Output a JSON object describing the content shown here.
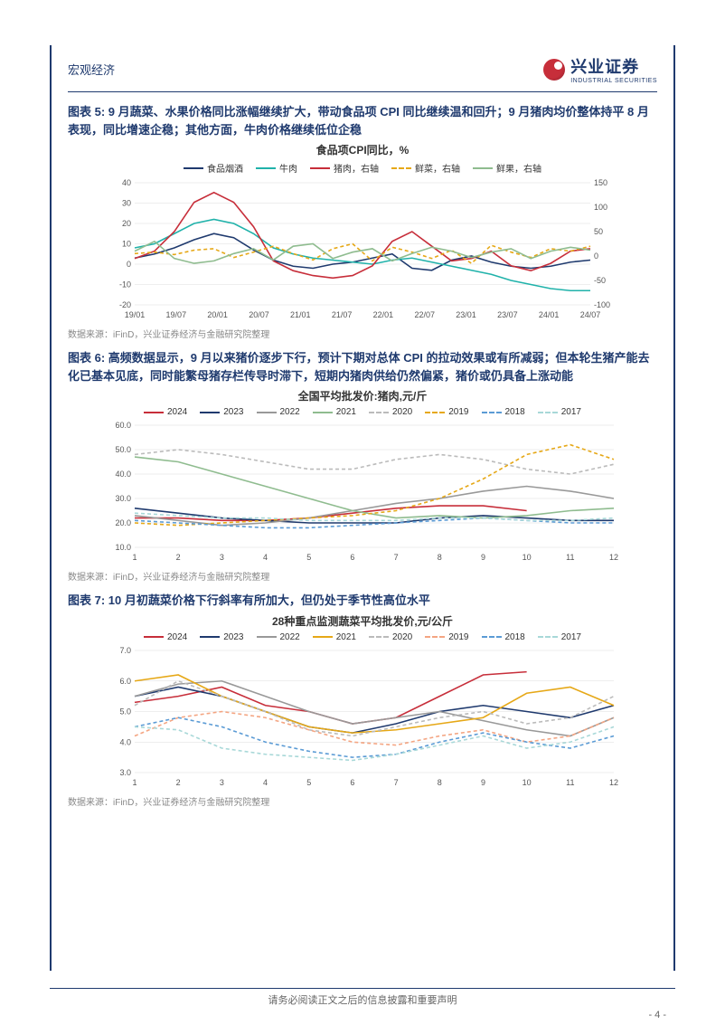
{
  "header": {
    "category": "宏观经济"
  },
  "logo": {
    "cn": "兴业证券",
    "en": "INDUSTRIAL SECURITIES"
  },
  "figures": {
    "fig5": {
      "title": "图表 5: 9 月蔬菜、水果价格同比涨幅继续扩大，带动食品项 CPI 同比继续温和回升；9 月猪肉均价整体持平 8 月表现，同比增速企稳；其他方面，牛肉价格继续低位企稳",
      "chart_title": "食品项CPI同比，%",
      "type": "line",
      "x_labels": [
        "19/01",
        "19/07",
        "20/01",
        "20/07",
        "21/01",
        "21/07",
        "22/01",
        "22/07",
        "23/01",
        "23/07",
        "24/01",
        "24/07"
      ],
      "y_left": {
        "min": -20,
        "max": 40,
        "ticks": [
          -20,
          -10,
          0,
          10,
          20,
          30,
          40
        ]
      },
      "y_right": {
        "min": -100,
        "max": 150,
        "ticks": [
          -100,
          -50,
          0,
          50,
          100,
          150
        ]
      },
      "series": [
        {
          "name": "食品烟酒",
          "color": "#1f3a6e",
          "dash": false,
          "axis": "left",
          "values": [
            3,
            5,
            8,
            12,
            15,
            13,
            7,
            2,
            -1,
            -2,
            0,
            1,
            3,
            5,
            -2,
            -3,
            2,
            4,
            1,
            -1,
            -2,
            -1,
            1,
            2
          ]
        },
        {
          "name": "牛肉",
          "color": "#20b2aa",
          "dash": false,
          "axis": "left",
          "values": [
            8,
            10,
            15,
            20,
            22,
            20,
            15,
            8,
            5,
            3,
            2,
            1,
            0,
            2,
            3,
            1,
            -1,
            -3,
            -5,
            -8,
            -10,
            -12,
            -13,
            -13
          ]
        },
        {
          "name": "猪肉，右轴",
          "color": "#c72e3a",
          "dash": false,
          "axis": "right",
          "values": [
            -5,
            10,
            50,
            110,
            130,
            110,
            60,
            -10,
            -30,
            -40,
            -45,
            -40,
            -20,
            30,
            50,
            20,
            -10,
            -5,
            10,
            -20,
            -30,
            -15,
            10,
            15
          ]
        },
        {
          "name": "鲜菜，右轴",
          "color": "#e6a817",
          "dash": true,
          "axis": "right",
          "values": [
            5,
            8,
            3,
            12,
            15,
            -3,
            8,
            20,
            5,
            -8,
            15,
            25,
            -10,
            18,
            8,
            -5,
            12,
            -15,
            22,
            8,
            -3,
            15,
            10,
            20
          ]
        },
        {
          "name": "鲜果，右轴",
          "color": "#8fbc8f",
          "dash": false,
          "axis": "right",
          "values": [
            10,
            30,
            -5,
            -15,
            -10,
            5,
            15,
            -8,
            20,
            25,
            -5,
            8,
            15,
            -10,
            5,
            18,
            10,
            -3,
            8,
            15,
            -5,
            10,
            18,
            12
          ]
        }
      ],
      "source": "数据来源：iFinD，兴业证券经济与金融研究院整理"
    },
    "fig6": {
      "title": "图表 6: 高频数据显示，9 月以来猪价逐步下行，预计下期对总体 CPI 的拉动效果或有所减弱；但本轮生猪产能去化已基本见底，同时能繁母猪存栏传导时滞下，短期内猪肉供给仍然偏紧，猪价或仍具备上涨动能",
      "chart_title": "全国平均批发价:猪肉,元/斤",
      "type": "line",
      "x_labels": [
        "1",
        "2",
        "3",
        "4",
        "5",
        "6",
        "7",
        "8",
        "9",
        "10",
        "11",
        "12"
      ],
      "y": {
        "min": 10.0,
        "max": 60.0,
        "ticks": [
          10.0,
          20.0,
          30.0,
          40.0,
          50.0,
          60.0
        ]
      },
      "series": [
        {
          "name": "2024",
          "color": "#c72e3a",
          "dash": false,
          "values": [
            22,
            22,
            21,
            21,
            22,
            24,
            26,
            27,
            27,
            25,
            null,
            null
          ]
        },
        {
          "name": "2023",
          "color": "#1f3a6e",
          "dash": false,
          "values": [
            26,
            24,
            22,
            21,
            20,
            20,
            20,
            22,
            23,
            22,
            21,
            21
          ]
        },
        {
          "name": "2022",
          "color": "#999999",
          "dash": false,
          "values": [
            23,
            21,
            19,
            20,
            22,
            25,
            28,
            30,
            33,
            35,
            33,
            30
          ]
        },
        {
          "name": "2021",
          "color": "#8fbc8f",
          "dash": false,
          "values": [
            47,
            45,
            40,
            35,
            30,
            25,
            22,
            23,
            22,
            23,
            25,
            26
          ]
        },
        {
          "name": "2020",
          "color": "#bbbbbb",
          "dash": true,
          "values": [
            48,
            50,
            48,
            45,
            42,
            42,
            46,
            48,
            46,
            42,
            40,
            44
          ]
        },
        {
          "name": "2019",
          "color": "#e6a817",
          "dash": true,
          "values": [
            20,
            19,
            20,
            21,
            22,
            23,
            25,
            30,
            38,
            48,
            52,
            46
          ]
        },
        {
          "name": "2018",
          "color": "#5b9bd5",
          "dash": true,
          "values": [
            21,
            20,
            19,
            18,
            18,
            19,
            20,
            21,
            22,
            21,
            20,
            20
          ]
        },
        {
          "name": "2017",
          "color": "#a8d8d8",
          "dash": true,
          "values": [
            24,
            23,
            22,
            22,
            21,
            21,
            21,
            22,
            22,
            21,
            21,
            22
          ]
        }
      ],
      "source": "数据来源：iFinD，兴业证券经济与金融研究院整理"
    },
    "fig7": {
      "title": "图表 7: 10 月初蔬菜价格下行斜率有所加大，但仍处于季节性高位水平",
      "chart_title": "28种重点监测蔬菜平均批发价,元/公斤",
      "type": "line",
      "x_labels": [
        "1",
        "2",
        "3",
        "4",
        "5",
        "6",
        "7",
        "8",
        "9",
        "10",
        "11",
        "12"
      ],
      "y": {
        "min": 3.0,
        "max": 7.0,
        "ticks": [
          3.0,
          4.0,
          5.0,
          6.0,
          7.0
        ]
      },
      "series": [
        {
          "name": "2024",
          "color": "#c72e3a",
          "dash": false,
          "values": [
            5.3,
            5.5,
            5.8,
            5.2,
            5.0,
            4.6,
            4.8,
            5.5,
            6.2,
            6.3,
            null,
            null
          ]
        },
        {
          "name": "2023",
          "color": "#1f3a6e",
          "dash": false,
          "values": [
            5.5,
            5.8,
            5.5,
            5.0,
            4.5,
            4.3,
            4.6,
            5.0,
            5.2,
            5.0,
            4.8,
            5.2
          ]
        },
        {
          "name": "2022",
          "color": "#999999",
          "dash": false,
          "values": [
            5.5,
            5.9,
            6.0,
            5.5,
            5.0,
            4.6,
            4.8,
            5.0,
            4.7,
            4.4,
            4.2,
            4.8
          ]
        },
        {
          "name": "2021",
          "color": "#e6a817",
          "dash": false,
          "values": [
            6.0,
            6.2,
            5.5,
            5.0,
            4.5,
            4.3,
            4.4,
            4.6,
            4.8,
            5.6,
            5.8,
            5.2
          ]
        },
        {
          "name": "2020",
          "color": "#bbbbbb",
          "dash": true,
          "values": [
            5.2,
            6.0,
            5.5,
            5.0,
            4.4,
            4.2,
            4.5,
            4.8,
            5.0,
            4.6,
            4.8,
            5.5
          ]
        },
        {
          "name": "2019",
          "color": "#f4a582",
          "dash": true,
          "values": [
            4.2,
            4.8,
            5.0,
            4.8,
            4.4,
            4.0,
            3.9,
            4.2,
            4.4,
            4.0,
            4.2,
            4.8
          ]
        },
        {
          "name": "2018",
          "color": "#5b9bd5",
          "dash": true,
          "values": [
            4.5,
            4.8,
            4.5,
            4.0,
            3.7,
            3.5,
            3.6,
            4.0,
            4.3,
            4.0,
            3.8,
            4.2
          ]
        },
        {
          "name": "2017",
          "color": "#a8d8d8",
          "dash": true,
          "values": [
            4.5,
            4.4,
            3.8,
            3.6,
            3.5,
            3.4,
            3.6,
            3.9,
            4.2,
            3.8,
            4.0,
            4.5
          ]
        }
      ],
      "source": "数据来源：iFinD，兴业证券经济与金融研究院整理"
    }
  },
  "footer": {
    "disclaimer": "请务必阅读正文之后的信息披露和重要声明",
    "page": "- 4 -"
  }
}
